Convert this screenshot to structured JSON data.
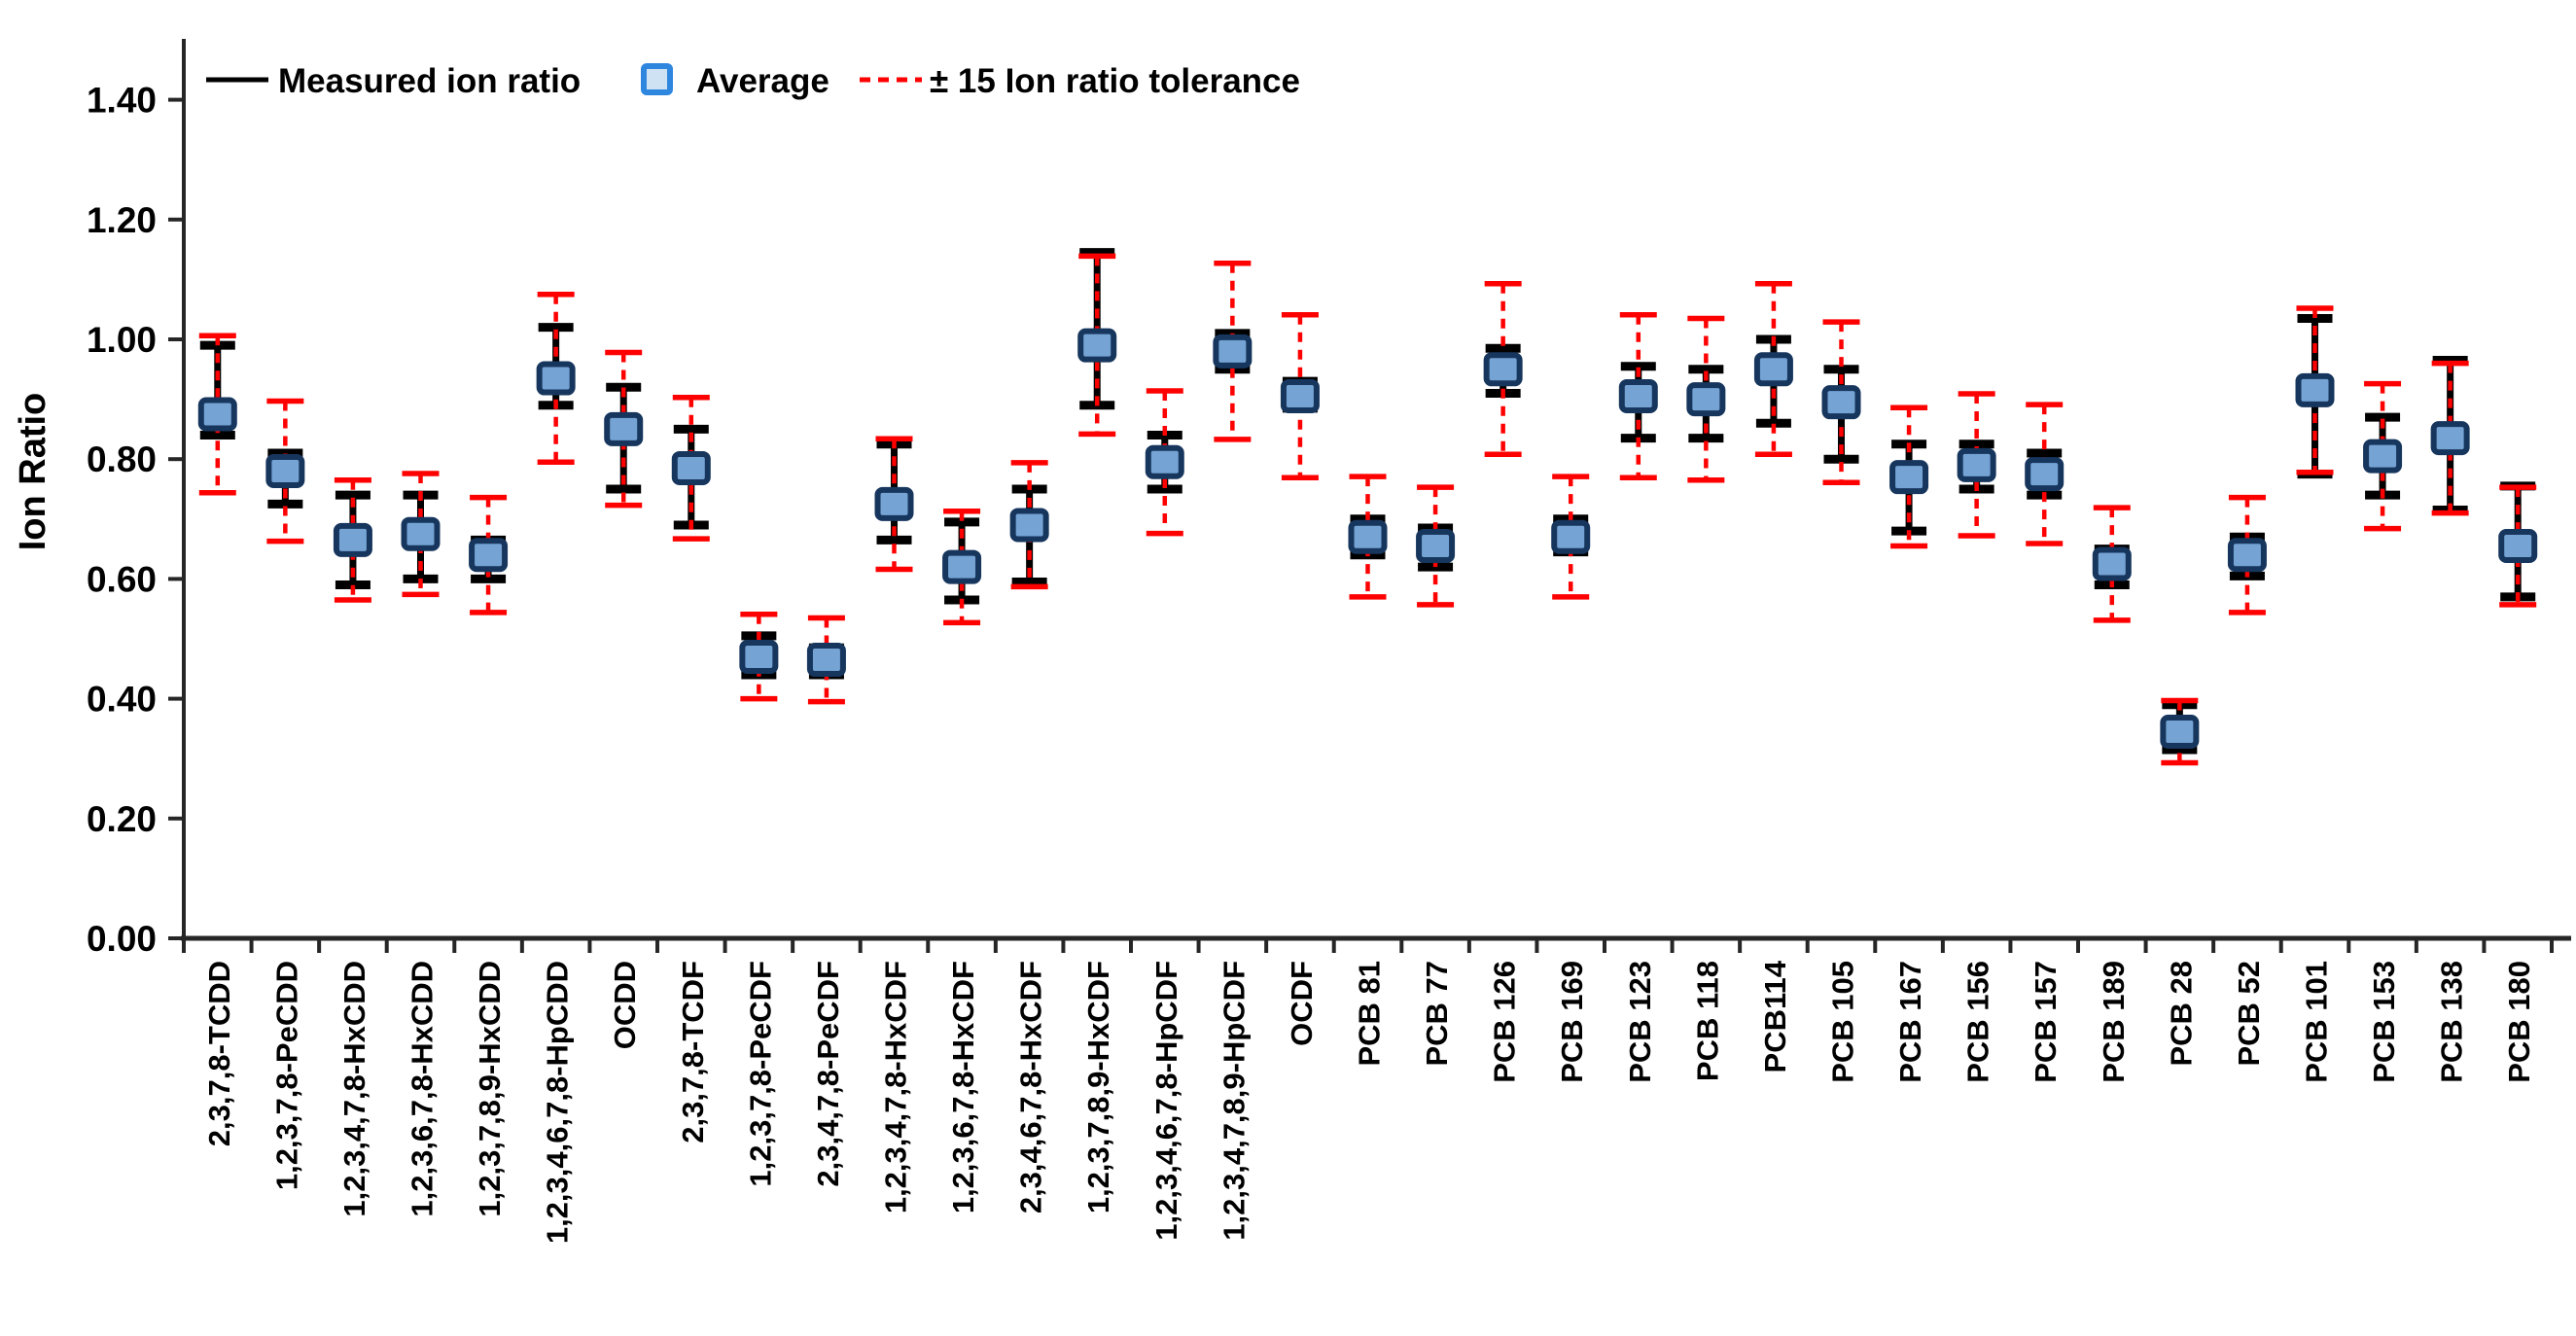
{
  "figure": {
    "kind": "error-bar chart of measured ion ratios vs tolerance",
    "background": "#FFFFFF"
  },
  "chart_data": {
    "type": "scatter",
    "title": "",
    "xlabel": "",
    "ylabel": "Ion Ratio",
    "ylim": [
      0.0,
      1.5
    ],
    "grid": false,
    "legend_position": "top-left inside plot",
    "yticks": [
      {
        "value": 0.0,
        "label": "0.00"
      },
      {
        "value": 0.2,
        "label": "0.20"
      },
      {
        "value": 0.4,
        "label": "0.40"
      },
      {
        "value": 0.6,
        "label": "0.60"
      },
      {
        "value": 0.8,
        "label": "0.80"
      },
      {
        "value": 1.0,
        "label": "1.00"
      },
      {
        "value": 1.2,
        "label": "1.20"
      },
      {
        "value": 1.4,
        "label": "1.40"
      }
    ],
    "legend": [
      {
        "label": "Measured ion ratio",
        "symbol": "black-line"
      },
      {
        "label": "Average",
        "symbol": "blue-square"
      },
      {
        "label": "± 15 Ion ratio tolerance",
        "symbol": "red-dashed-line"
      }
    ],
    "categories": [
      "2,3,7,8-TCDD",
      "1,2,3,7,8-PeCDD",
      "1,2,3,4,7,8-HxCDD",
      "1,2,3,6,7,8-HxCDD",
      "1,2,3,7,8,9-HxCDD",
      "1,2,3,4,6,7,8-HpCDD",
      "OCDD",
      "2,3,7,8-TCDF",
      "1,2,3,7,8-PeCDF",
      "2,3,4,7,8-PeCDF",
      "1,2,3,4,7,8-HxCDF",
      "1,2,3,6,7,8-HxCDF",
      "2,3,4,6,7,8-HxCDF",
      "1,2,3,7,8,9-HxCDF",
      "1,2,3,4,6,7,8-HpCDF",
      "1,2,3,4,7,8,9-HpCDF",
      "OCDF",
      "PCB 81",
      "PCB 77",
      "PCB 126",
      "PCB 169",
      "PCB 123",
      "PCB 118",
      "PCB114",
      "PCB 105",
      "PCB 167",
      "PCB 156",
      "PCB 157",
      "PCB 189",
      "PCB 28",
      "PCB 52",
      "PCB 101",
      "PCB 153",
      "PCB 138",
      "PCB 180"
    ],
    "series": [
      {
        "name": "Average",
        "type": "scatter-square",
        "values": [
          0.875,
          0.78,
          0.665,
          0.675,
          0.64,
          0.935,
          0.85,
          0.785,
          0.47,
          0.465,
          0.725,
          0.62,
          0.69,
          0.99,
          0.795,
          0.98,
          0.905,
          0.67,
          0.655,
          0.95,
          0.67,
          0.905,
          0.9,
          0.95,
          0.895,
          0.77,
          0.79,
          0.775,
          0.625,
          0.345,
          0.64,
          0.915,
          0.805,
          0.835,
          0.655
        ]
      },
      {
        "name": "Measured ion ratio",
        "type": "errorbar",
        "min": [
          0.84,
          0.725,
          0.59,
          0.6,
          0.6,
          0.89,
          0.75,
          0.69,
          0.44,
          0.44,
          0.665,
          0.565,
          0.595,
          0.89,
          0.75,
          0.95,
          0.885,
          0.64,
          0.62,
          0.91,
          0.645,
          0.835,
          0.835,
          0.86,
          0.8,
          0.68,
          0.75,
          0.74,
          0.59,
          0.315,
          0.605,
          0.775,
          0.74,
          0.715,
          0.57
        ],
        "max": [
          0.99,
          0.81,
          0.74,
          0.74,
          0.665,
          1.02,
          0.92,
          0.85,
          0.505,
          0.485,
          0.825,
          0.695,
          0.75,
          1.145,
          0.84,
          1.01,
          0.93,
          0.7,
          0.685,
          0.985,
          0.7,
          0.955,
          0.95,
          1.0,
          0.95,
          0.825,
          0.825,
          0.81,
          0.65,
          0.39,
          0.67,
          1.035,
          0.87,
          0.965,
          0.755
        ]
      },
      {
        "name": "± 15 Ion ratio tolerance",
        "type": "errorbar-dashed",
        "min": [
          0.744,
          0.663,
          0.565,
          0.574,
          0.544,
          0.795,
          0.723,
          0.667,
          0.4,
          0.395,
          0.616,
          0.527,
          0.587,
          0.842,
          0.676,
          0.833,
          0.769,
          0.57,
          0.557,
          0.808,
          0.57,
          0.769,
          0.765,
          0.808,
          0.761,
          0.655,
          0.672,
          0.659,
          0.531,
          0.293,
          0.544,
          0.778,
          0.684,
          0.71,
          0.557
        ],
        "max": [
          1.006,
          0.897,
          0.765,
          0.776,
          0.736,
          1.075,
          0.978,
          0.903,
          0.541,
          0.535,
          0.834,
          0.713,
          0.794,
          1.139,
          0.914,
          1.127,
          1.041,
          0.771,
          0.753,
          1.093,
          0.771,
          1.041,
          1.035,
          1.093,
          1.029,
          0.886,
          0.909,
          0.891,
          0.719,
          0.397,
          0.736,
          1.052,
          0.926,
          0.96,
          0.753
        ]
      }
    ],
    "colors": {
      "measured": "#000000",
      "tolerance": "#FF0000",
      "average_fill": "#74A3D4",
      "average_border": "#17365D",
      "legend_square_fill": "#CFE2F3",
      "legend_square_border": "#2E86DE",
      "axis": "#262626",
      "text": "#000000"
    }
  }
}
